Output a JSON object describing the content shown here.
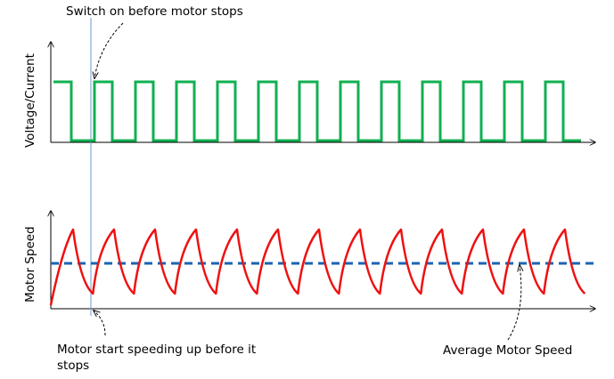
{
  "annotations": {
    "switch_on": "Switch on before motor stops",
    "start_speeding": "Motor start speeding up before it",
    "start_speeding_line2": "stops",
    "average_speed": "Average Motor Speed"
  },
  "axes": {
    "top_ylabel": "Voltage/Current",
    "bottom_ylabel": "Motor Speed"
  },
  "colors": {
    "voltage_wave": "#10b050",
    "motor_speed": "#ee1111",
    "average_line": "#1a64b4",
    "marker_line": "#6a9ad0",
    "axis": "#000000"
  },
  "waveform": {
    "pulses": 13,
    "duty_cycle": 0.5
  }
}
